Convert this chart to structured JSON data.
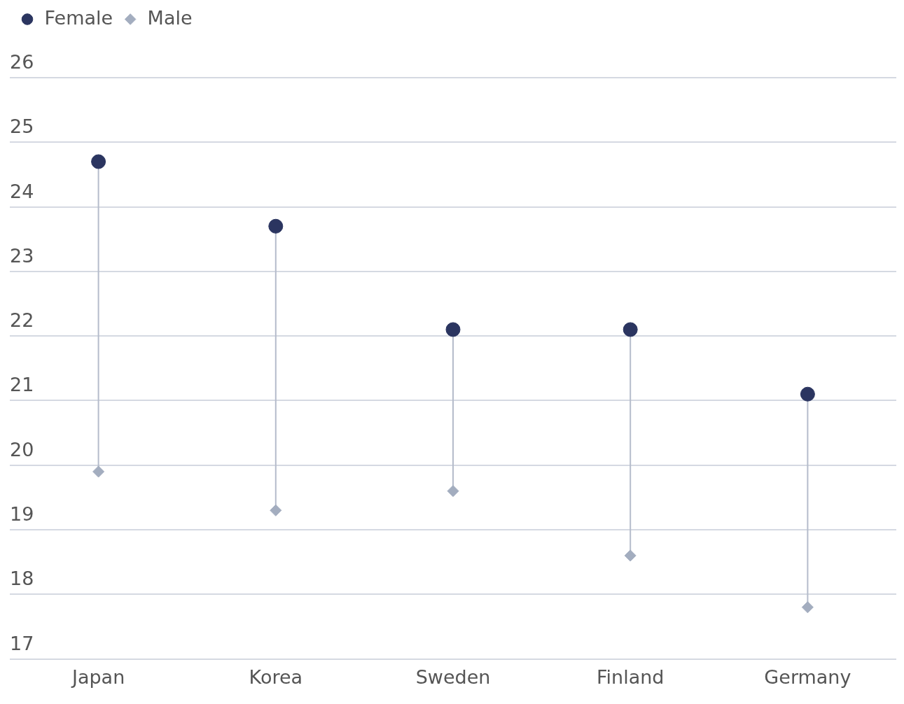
{
  "chart_data": {
    "type": "scatter",
    "categories": [
      "Japan",
      "Korea",
      "Sweden",
      "Finland",
      "Germany"
    ],
    "series": [
      {
        "name": "Female",
        "color": "#2b3560",
        "marker": "circle",
        "values": [
          24.7,
          23.7,
          22.1,
          22.1,
          21.1
        ]
      },
      {
        "name": "Male",
        "color": "#a3adbf",
        "marker": "diamond",
        "values": [
          19.9,
          19.3,
          19.6,
          18.6,
          17.8
        ]
      }
    ],
    "ylim": [
      17,
      26
    ],
    "yticks": [
      17,
      18,
      19,
      20,
      21,
      22,
      23,
      24,
      25,
      26
    ],
    "grid": "y",
    "legend": "top left"
  }
}
